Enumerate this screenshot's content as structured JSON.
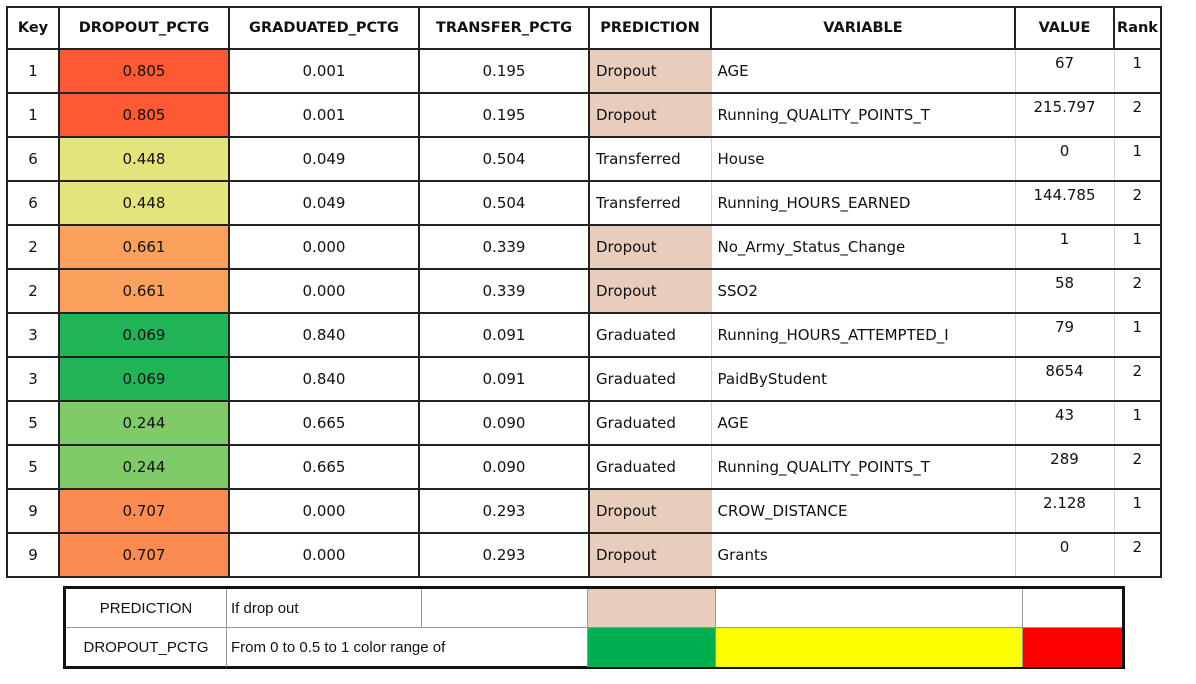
{
  "columns": [
    "Key",
    "DROPOUT_PCTG",
    "GRADUATED_PCTG",
    "TRANSFER_PCTG",
    "PREDICTION",
    "VARIABLE",
    "VALUE",
    "Rank"
  ],
  "rows": [
    {
      "key": "1",
      "dropout": "0.805",
      "graduated": "0.001",
      "transfer": "0.195",
      "prediction": "Dropout",
      "variable": "AGE",
      "value": "67",
      "rank": "1",
      "dropout_color": "#fd5a34",
      "prediction_highlight": true
    },
    {
      "key": "1",
      "dropout": "0.805",
      "graduated": "0.001",
      "transfer": "0.195",
      "prediction": "Dropout",
      "variable": "Running_QUALITY_POINTS_T",
      "value": "215.797",
      "rank": "2",
      "dropout_color": "#fd5a34",
      "prediction_highlight": true
    },
    {
      "key": "6",
      "dropout": "0.448",
      "graduated": "0.049",
      "transfer": "0.504",
      "prediction": "Transferred",
      "variable": "House",
      "value": "0",
      "rank": "1",
      "dropout_color": "#e3e47c",
      "prediction_highlight": false
    },
    {
      "key": "6",
      "dropout": "0.448",
      "graduated": "0.049",
      "transfer": "0.504",
      "prediction": "Transferred",
      "variable": "Running_HOURS_EARNED",
      "value": "144.785",
      "rank": "2",
      "dropout_color": "#e3e47c",
      "prediction_highlight": false
    },
    {
      "key": "2",
      "dropout": "0.661",
      "graduated": "0.000",
      "transfer": "0.339",
      "prediction": "Dropout",
      "variable": "No_Army_Status_Change",
      "value": "1",
      "rank": "1",
      "dropout_color": "#fba05d",
      "prediction_highlight": true
    },
    {
      "key": "2",
      "dropout": "0.661",
      "graduated": "0.000",
      "transfer": "0.339",
      "prediction": "Dropout",
      "variable": "SSO2",
      "value": "58",
      "rank": "2",
      "dropout_color": "#fba05d",
      "prediction_highlight": true
    },
    {
      "key": "3",
      "dropout": "0.069",
      "graduated": "0.840",
      "transfer": "0.091",
      "prediction": "Graduated",
      "variable": "Running_HOURS_ATTEMPTED_I",
      "value": "79",
      "rank": "1",
      "dropout_color": "#21b457",
      "prediction_highlight": false
    },
    {
      "key": "3",
      "dropout": "0.069",
      "graduated": "0.840",
      "transfer": "0.091",
      "prediction": "Graduated",
      "variable": "PaidByStudent",
      "value": "8654",
      "rank": "2",
      "dropout_color": "#21b457",
      "prediction_highlight": false
    },
    {
      "key": "5",
      "dropout": "0.244",
      "graduated": "0.665",
      "transfer": "0.090",
      "prediction": "Graduated",
      "variable": "AGE",
      "value": "43",
      "rank": "1",
      "dropout_color": "#7fcb68",
      "prediction_highlight": false
    },
    {
      "key": "5",
      "dropout": "0.244",
      "graduated": "0.665",
      "transfer": "0.090",
      "prediction": "Graduated",
      "variable": "Running_QUALITY_POINTS_T",
      "value": "289",
      "rank": "2",
      "dropout_color": "#7fcb68",
      "prediction_highlight": false
    },
    {
      "key": "9",
      "dropout": "0.707",
      "graduated": "0.000",
      "transfer": "0.293",
      "prediction": "Dropout",
      "variable": "CROW_DISTANCE",
      "value": "2.128",
      "rank": "1",
      "dropout_color": "#fc8b51",
      "prediction_highlight": true
    },
    {
      "key": "9",
      "dropout": "0.707",
      "graduated": "0.000",
      "transfer": "0.293",
      "prediction": "Dropout",
      "variable": "Grants",
      "value": "0",
      "rank": "2",
      "dropout_color": "#fc8b51",
      "prediction_highlight": true
    }
  ],
  "colors": {
    "prediction_highlight": "#e8cdbd",
    "scale_low": "#00b050",
    "scale_mid": "#ffff00",
    "scale_high": "#ff0000"
  },
  "legend": {
    "row1": {
      "label": "PREDICTION",
      "text": "If drop out"
    },
    "row2": {
      "label": "DROPOUT_PCTG",
      "text": "From 0 to 0.5 to 1 color range of"
    }
  }
}
